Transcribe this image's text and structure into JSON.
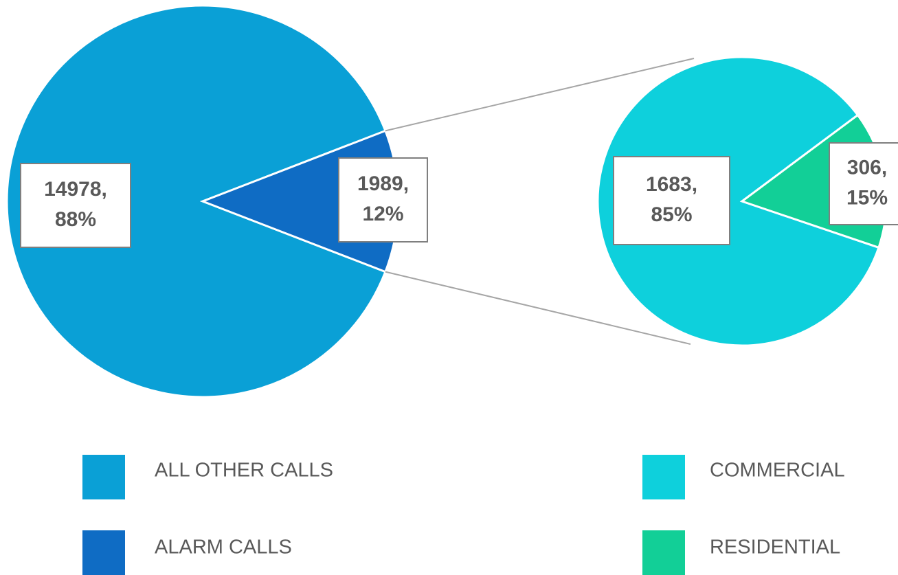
{
  "chart_data": [
    {
      "type": "pie",
      "categories": [
        "ALL OTHER CALLS",
        "ALARM CALLS"
      ],
      "values": [
        14978,
        1989
      ],
      "value_labels": [
        [
          "14978,",
          "88%"
        ],
        [
          "1989,",
          "12%"
        ]
      ],
      "colors": [
        "#0aa0d6",
        "#0f6cc4"
      ]
    },
    {
      "type": "pie",
      "categories": [
        "COMMERCIAL",
        "RESIDENTIAL"
      ],
      "values": [
        1683,
        306
      ],
      "value_labels": [
        [
          "1683,",
          "85%"
        ],
        [
          "306,",
          "15%"
        ]
      ],
      "colors": [
        "#0ed0dc",
        "#12cf97"
      ]
    }
  ]
}
